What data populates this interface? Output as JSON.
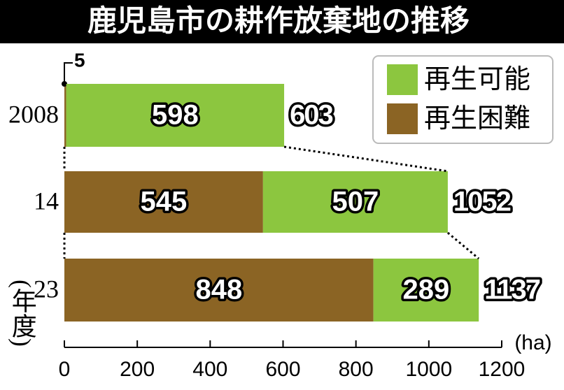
{
  "chart_data": {
    "type": "stacked-barh",
    "title": "鹿児島市の耕作放棄地の推移",
    "y_label": "(年度)",
    "x_label": "(ha)",
    "categories": [
      "2008",
      "14",
      "23"
    ],
    "series": [
      {
        "name": "再生困難",
        "color": "#8b6424",
        "values": [
          5,
          545,
          848
        ]
      },
      {
        "name": "再生可能",
        "color": "#8cc63f",
        "values": [
          598,
          507,
          289
        ]
      }
    ],
    "totals": [
      603,
      1052,
      1137
    ],
    "xlim": [
      0,
      1200
    ],
    "xticks": [
      0,
      200,
      400,
      600,
      800,
      1000,
      1200
    ],
    "legend": "upper right"
  }
}
